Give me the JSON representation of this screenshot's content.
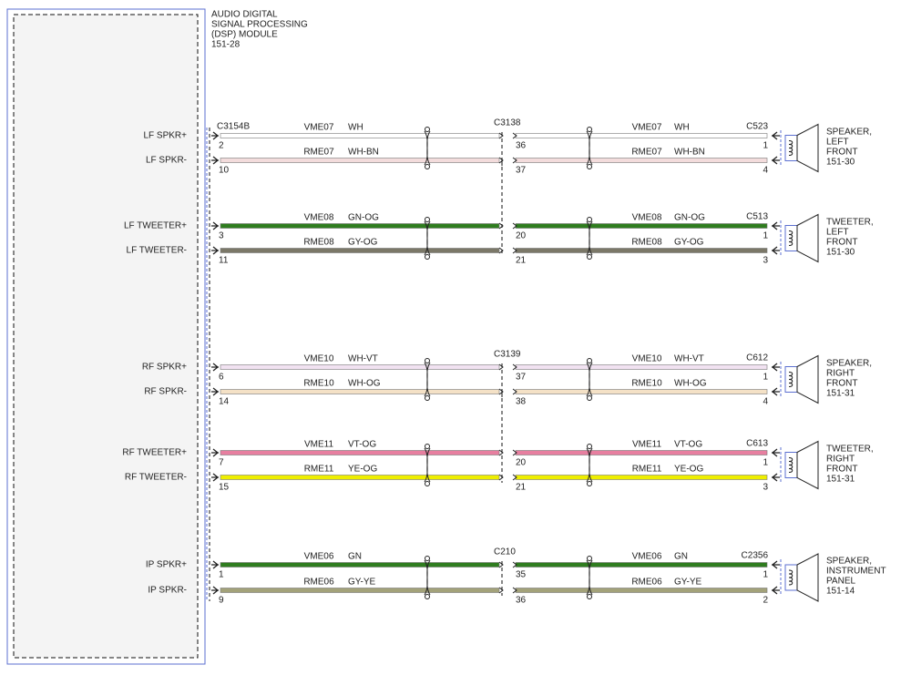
{
  "module": {
    "title": [
      "AUDIO DIGITAL",
      "SIGNAL PROCESSING",
      "(DSP) MODULE",
      "151-28"
    ],
    "connector": "C3154B"
  },
  "groups": [
    {
      "mid_connector": "C3138",
      "right_connector": "C523",
      "device": [
        "SPEAKER,",
        "LEFT",
        "FRONT",
        "151-30"
      ],
      "wires": [
        {
          "label": "LF SPKR+",
          "pin": "2",
          "circuit": "VME07",
          "color": "WH",
          "mid_pin": "36",
          "circuit_2": "VME07",
          "color_2": "WH",
          "end_pin": "1",
          "fill": "#ffffff"
        },
        {
          "label": "LF SPKR-",
          "pin": "10",
          "circuit": "RME07",
          "color": "WH-BN",
          "mid_pin": "37",
          "circuit_2": "RME07",
          "color_2": "WH-BN",
          "end_pin": "4",
          "fill": "#f3dcdc"
        }
      ]
    },
    {
      "right_connector": "C513",
      "device": [
        "TWEETER,",
        "LEFT",
        "FRONT",
        "151-30"
      ],
      "wires": [
        {
          "label": "LF TWEETER+",
          "pin": "3",
          "circuit": "VME08",
          "color": "GN-OG",
          "mid_pin": "20",
          "circuit_2": "VME08",
          "color_2": "GN-OG",
          "end_pin": "1",
          "fill": "#2f7d1f"
        },
        {
          "label": "LF TWEETER-",
          "pin": "11",
          "circuit": "RME08",
          "color": "GY-OG",
          "mid_pin": "21",
          "circuit_2": "RME08",
          "color_2": "GY-OG",
          "end_pin": "3",
          "fill": "#7b7868"
        }
      ]
    },
    {
      "mid_connector": "C3139",
      "right_connector": "C612",
      "device": [
        "SPEAKER,",
        "RIGHT",
        "FRONT",
        "151-31"
      ],
      "wires": [
        {
          "label": "RF SPKR+",
          "pin": "6",
          "circuit": "VME10",
          "color": "WH-VT",
          "mid_pin": "37",
          "circuit_2": "VME10",
          "color_2": "WH-VT",
          "end_pin": "1",
          "fill": "#f1e2f1"
        },
        {
          "label": "RF SPKR-",
          "pin": "14",
          "circuit": "RME10",
          "color": "WH-OG",
          "mid_pin": "38",
          "circuit_2": "RME10",
          "color_2": "WH-OG",
          "end_pin": "4",
          "fill": "#f4e1c6"
        }
      ]
    },
    {
      "right_connector": "C613",
      "device": [
        "TWEETER,",
        "RIGHT",
        "FRONT",
        "151-31"
      ],
      "wires": [
        {
          "label": "RF TWEETER+",
          "pin": "7",
          "circuit": "VME11",
          "color": "VT-OG",
          "mid_pin": "20",
          "circuit_2": "VME11",
          "color_2": "VT-OG",
          "end_pin": "1",
          "fill": "#e77fa0"
        },
        {
          "label": "RF TWEETER-",
          "pin": "15",
          "circuit": "RME11",
          "color": "YE-OG",
          "mid_pin": "21",
          "circuit_2": "RME11",
          "color_2": "YE-OG",
          "end_pin": "3",
          "fill": "#eeee00"
        }
      ]
    },
    {
      "mid_connector": "C210",
      "right_connector": "C2356",
      "device": [
        "SPEAKER,",
        "INSTRUMENT",
        "PANEL",
        "151-14"
      ],
      "wires": [
        {
          "label": "IP SPKR+",
          "pin": "1",
          "circuit": "VME06",
          "color": "GN",
          "mid_pin": "35",
          "circuit_2": "VME06",
          "color_2": "GN",
          "end_pin": "1",
          "fill": "#2f7d1f"
        },
        {
          "label": "IP SPKR-",
          "pin": "9",
          "circuit": "RME06",
          "color": "GY-YE",
          "mid_pin": "36",
          "circuit_2": "RME06",
          "color_2": "GY-YE",
          "end_pin": "2",
          "fill": "#a3a27a"
        }
      ]
    }
  ]
}
